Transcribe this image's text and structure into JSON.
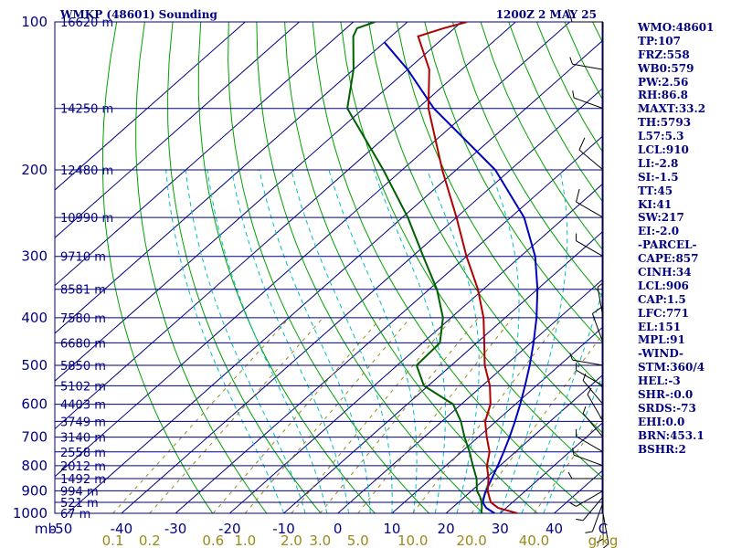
{
  "header": {
    "station": "WMKP (48601) Sounding",
    "time": "1200Z  2 MAY 25"
  },
  "indices": [
    "WMO:48601",
    "TP:107",
    "FRZ:558",
    "WB0:579",
    "PW:2.56",
    "RH:86.8",
    "MAXT:33.2",
    "TH:5793",
    "L57:5.3",
    "LCL:910",
    "LI:-2.8",
    "SI:-1.5",
    "TT:45",
    "KI:41",
    "SW:217",
    "EI:-2.0",
    "-PARCEL-",
    "CAPE:857",
    "CINH:34",
    "LCL:906",
    "CAP:1.5",
    "LFC:771",
    "EL:151",
    "MPL:91",
    "-WIND-",
    "STM:360/4",
    "HEL:-3",
    "SHR-:0.0",
    "SRDS:-73",
    "EHI:0.0",
    "BRN:453.1",
    "BSHR:2"
  ],
  "colors": {
    "isobar": "#000080",
    "isotherm": "#000080",
    "dry_adiabat": "#00a000",
    "moist_adiabat": "#00c0c0",
    "mixing_ratio": "#9a8a18",
    "temperature": "#b00000",
    "dewpoint": "#006000",
    "parcel": "#0000c0",
    "wind": "#000000"
  },
  "chart_data": {
    "type": "skew-t",
    "pressure_unit": "mb",
    "temperature_unit": "C",
    "mixing_ratio_unit": "g/kg",
    "pressure_levels": [
      {
        "p": 100,
        "label": "100",
        "height": "16620 m"
      },
      {
        "p": 150,
        "label": "",
        "height": "14250 m"
      },
      {
        "p": 200,
        "label": "200",
        "height": "12480 m"
      },
      {
        "p": 250,
        "label": "",
        "height": "10990 m"
      },
      {
        "p": 300,
        "label": "300",
        "height": "9710 m"
      },
      {
        "p": 350,
        "label": "",
        "height": "8581 m"
      },
      {
        "p": 400,
        "label": "400",
        "height": "7580 m"
      },
      {
        "p": 450,
        "label": "",
        "height": "6680 m"
      },
      {
        "p": 500,
        "label": "500",
        "height": "5850 m"
      },
      {
        "p": 550,
        "label": "",
        "height": "5102 m"
      },
      {
        "p": 600,
        "label": "600",
        "height": "4403 m"
      },
      {
        "p": 650,
        "label": "",
        "height": "3749 m"
      },
      {
        "p": 700,
        "label": "700",
        "height": "3140 m"
      },
      {
        "p": 750,
        "label": "",
        "height": "2558 m"
      },
      {
        "p": 800,
        "label": "800",
        "height": "2012 m"
      },
      {
        "p": 850,
        "label": "",
        "height": "1492 m"
      },
      {
        "p": 900,
        "label": "900",
        "height": "994 m"
      },
      {
        "p": 950,
        "label": "",
        "height": "521 m"
      },
      {
        "p": 1000,
        "label": "1000",
        "height": "67 m"
      }
    ],
    "temperature_ticks": [
      -40,
      -30,
      -20,
      -10,
      0,
      10,
      20,
      30,
      40
    ],
    "x_axis_label_left": "mb",
    "x_axis_label_left_value": "-50",
    "x_axis_label_right": "C",
    "mixing_ratio_ticks": [
      "0.1",
      "0.2",
      "0.6",
      "1.0",
      "2.0",
      "3.0",
      "5.0",
      "10.0",
      "20.0",
      "40.0"
    ],
    "mixing_ratio_values": [
      0.1,
      0.2,
      0.6,
      1.0,
      2.0,
      3.0,
      5.0,
      10.0,
      20.0,
      40.0
    ],
    "mixing_ratio_unit_label": "g/kg",
    "temperature_profile": [
      [
        1000,
        33.2
      ],
      [
        975,
        28.5
      ],
      [
        950,
        26.0
      ],
      [
        925,
        24.5
      ],
      [
        900,
        23.0
      ],
      [
        850,
        20.6
      ],
      [
        800,
        17.6
      ],
      [
        750,
        15.2
      ],
      [
        700,
        11.6
      ],
      [
        650,
        8.0
      ],
      [
        600,
        5.4
      ],
      [
        550,
        1.4
      ],
      [
        500,
        -3.8
      ],
      [
        450,
        -8.6
      ],
      [
        400,
        -14.0
      ],
      [
        350,
        -21.0
      ],
      [
        300,
        -30.0
      ],
      [
        250,
        -40.0
      ],
      [
        200,
        -52.6
      ],
      [
        150,
        -68.0
      ],
      [
        125,
        -76.0
      ],
      [
        107,
        -85.0
      ],
      [
        103,
        -82.0
      ],
      [
        100,
        -79.0
      ]
    ],
    "dewpoint_profile": [
      [
        1000,
        26.5
      ],
      [
        975,
        25.5
      ],
      [
        950,
        24.3
      ],
      [
        925,
        22.8
      ],
      [
        900,
        21.0
      ],
      [
        850,
        18.4
      ],
      [
        800,
        15.0
      ],
      [
        750,
        11.5
      ],
      [
        700,
        7.5
      ],
      [
        650,
        3.5
      ],
      [
        600,
        -1.5
      ],
      [
        550,
        -10.8
      ],
      [
        500,
        -16.4
      ],
      [
        450,
        -16.8
      ],
      [
        400,
        -21.5
      ],
      [
        350,
        -28.6
      ],
      [
        300,
        -38.0
      ],
      [
        250,
        -49.0
      ],
      [
        200,
        -63.5
      ],
      [
        150,
        -83.0
      ],
      [
        125,
        -90.0
      ],
      [
        107,
        -97.0
      ],
      [
        103,
        -98.0
      ],
      [
        100,
        -96.0
      ]
    ],
    "parcel_profile": [
      [
        1000,
        29.0
      ],
      [
        975,
        26.3
      ],
      [
        950,
        24.5
      ],
      [
        910,
        23.0
      ],
      [
        850,
        21.2
      ],
      [
        800,
        19.6
      ],
      [
        750,
        17.8
      ],
      [
        700,
        15.8
      ],
      [
        650,
        13.5
      ],
      [
        600,
        10.9
      ],
      [
        550,
        7.9
      ],
      [
        500,
        4.5
      ],
      [
        450,
        0.5
      ],
      [
        400,
        -4.2
      ],
      [
        350,
        -10.0
      ],
      [
        300,
        -17.3
      ],
      [
        250,
        -27.5
      ],
      [
        200,
        -42.8
      ],
      [
        150,
        -67.0
      ],
      [
        125,
        -80.0
      ],
      [
        110,
        -90.0
      ]
    ],
    "wind_profile": [
      [
        1000,
        170,
        5
      ],
      [
        975,
        180,
        5
      ],
      [
        950,
        200,
        5
      ],
      [
        925,
        220,
        5
      ],
      [
        900,
        240,
        5
      ],
      [
        850,
        270,
        5
      ],
      [
        800,
        290,
        5
      ],
      [
        750,
        300,
        5
      ],
      [
        700,
        320,
        5
      ],
      [
        650,
        330,
        5
      ],
      [
        600,
        320,
        5
      ],
      [
        550,
        300,
        5
      ],
      [
        500,
        280,
        5
      ],
      [
        450,
        340,
        10
      ],
      [
        400,
        350,
        5
      ],
      [
        300,
        300,
        5
      ],
      [
        250,
        300,
        10
      ],
      [
        200,
        310,
        10
      ],
      [
        150,
        290,
        5
      ],
      [
        125,
        280,
        5
      ],
      [
        100,
        270,
        10
      ]
    ]
  }
}
